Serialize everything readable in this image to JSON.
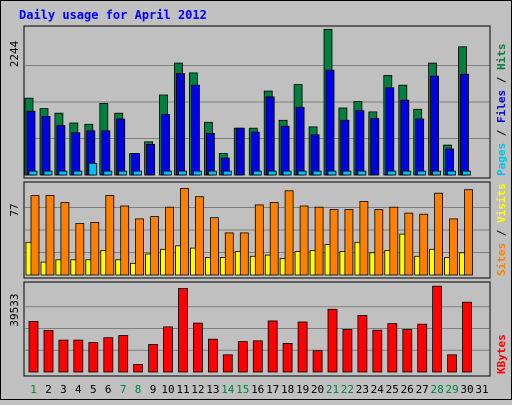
{
  "chart_data": {
    "type": "bar",
    "title": "Daily usage for April 2012",
    "categories": [
      "1",
      "2",
      "3",
      "4",
      "5",
      "6",
      "7",
      "8",
      "9",
      "10",
      "11",
      "12",
      "13",
      "14",
      "15",
      "16",
      "17",
      "18",
      "19",
      "20",
      "21",
      "22",
      "23",
      "24",
      "25",
      "26",
      "27",
      "28",
      "29",
      "30",
      "31"
    ],
    "weekend_days": [
      "1",
      "7",
      "8",
      "14",
      "15",
      "21",
      "22",
      "28",
      "29"
    ],
    "panels": [
      {
        "id": "top",
        "ymax_label": "2244",
        "ymax": 2244,
        "series": [
          {
            "name": "Pages",
            "color": "#00c0f0",
            "values": [
              60,
              60,
              60,
              60,
              180,
              60,
              60,
              60,
              0,
              60,
              60,
              60,
              60,
              60,
              0,
              60,
              60,
              60,
              60,
              60,
              60,
              60,
              60,
              0,
              60,
              60,
              60,
              60,
              60,
              60,
              0
            ]
          },
          {
            "name": "Files",
            "color": "#0000e0",
            "values": [
              980,
              900,
              760,
              650,
              680,
              680,
              860,
              330,
              470,
              930,
              1560,
              1380,
              640,
              260,
              720,
              660,
              1200,
              750,
              1040,
              620,
              1610,
              840,
              990,
              870,
              1340,
              1150,
              860,
              1520,
              400,
              1550,
              0
            ]
          },
          {
            "name": "Hits",
            "color": "#008040",
            "values": [
              1180,
              1020,
              950,
              800,
              780,
              1100,
              950,
              330,
              510,
              1230,
              1720,
              1570,
              810,
              330,
              720,
              720,
              1290,
              840,
              1390,
              740,
              2240,
              1030,
              1130,
              970,
              1530,
              1380,
              1010,
              1720,
              460,
              1970,
              0
            ]
          }
        ]
      },
      {
        "id": "middle",
        "ymax_label": "77",
        "ymax": 77,
        "series": [
          {
            "name": "Sites",
            "color": "#ff8000",
            "values": [
              68,
              68,
              62,
              44,
              45,
              68,
              59,
              48,
              50,
              58,
              74,
              67,
              49,
              36,
              36,
              60,
              62,
              72,
              59,
              58,
              56,
              56,
              63,
              56,
              58,
              53,
              52,
              70,
              48,
              73,
              0
            ]
          },
          {
            "name": "Visits",
            "color": "#ffff00",
            "values": [
              28,
              11,
              13,
              13,
              13,
              21,
              13,
              10,
              18,
              22,
              25,
              23,
              15,
              15,
              20,
              16,
              17,
              14,
              20,
              21,
              26,
              20,
              28,
              19,
              21,
              35,
              16,
              22,
              15,
              19,
              0
            ]
          }
        ]
      },
      {
        "id": "bottom",
        "ymax_label": "39533",
        "ymax": 39533,
        "series": [
          {
            "name": "KBytes",
            "color": "#ff0000",
            "values": [
              23000,
              18900,
              14500,
              14500,
              13400,
              15600,
              16600,
              3400,
              12500,
              20500,
              38000,
              22200,
              14900,
              7800,
              13800,
              14200,
              23200,
              13000,
              22700,
              9700,
              28500,
              19300,
              25700,
              19000,
              22000,
              19300,
              21700,
              39000,
              7800,
              31700,
              0
            ]
          }
        ]
      }
    ],
    "legend": {
      "top": [
        "Pages",
        "Files",
        "Hits"
      ],
      "middle": [
        "Sites",
        "Visits"
      ],
      "bottom": [
        "KBytes"
      ]
    },
    "grid": true,
    "legend_placement": "right"
  }
}
